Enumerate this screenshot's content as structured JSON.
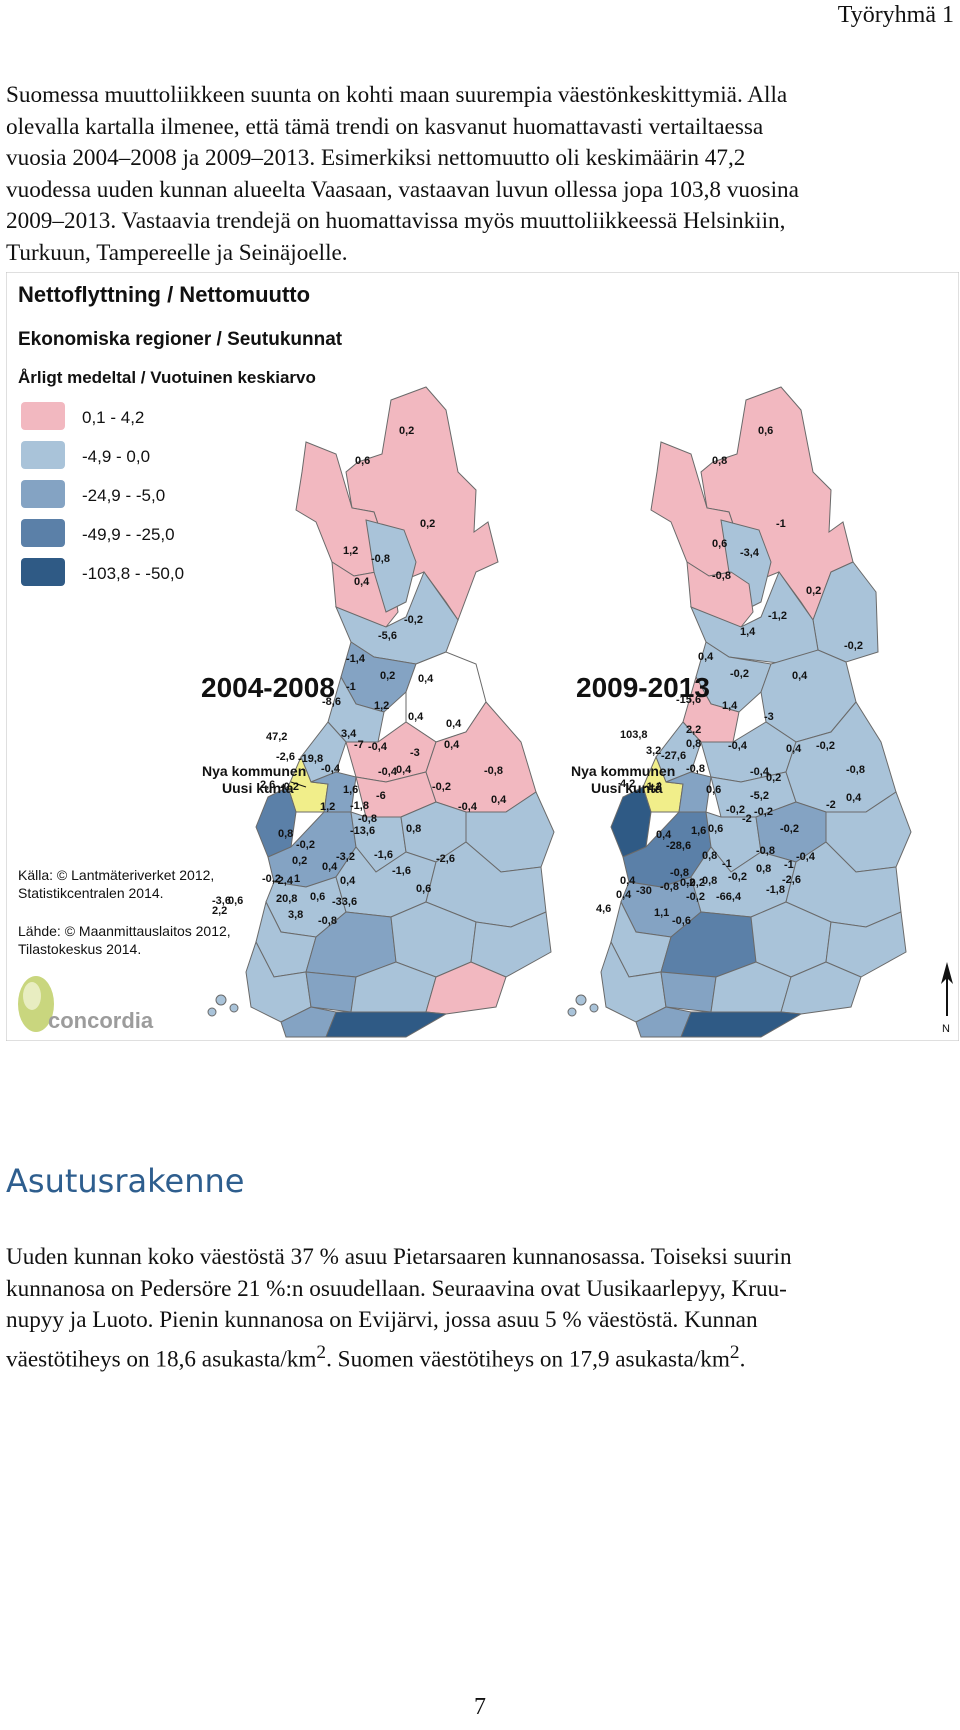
{
  "header": {
    "group_label": "Työryhmä 1"
  },
  "intro": {
    "lines": [
      "Suomessa muuttoliikkeen suunta on kohti maan suurempia väestönkeskittymiä. Alla",
      "olevalla kartalla ilmenee, että tämä trendi on kasvanut huomattavasti vertailtaessa",
      "vuosia 2004–2008 ja 2009–2013. Esimerkiksi nettomuutto oli keskimäärin 47,2",
      "vuodessa uuden kunnan alueelta Vaasaan, vastaavan luvun ollessa jopa 103,8 vuosina",
      "2009–2013. Vastaavia trendejä on huomattavissa myös muuttoliikkeessä Helsinkiin,",
      "Turkuun, Tampereelle ja Seinäjoelle."
    ]
  },
  "map": {
    "title": "Nettoflyttning / Nettomuutto",
    "subtitle": "Ekonomiska regioner / Seutukunnat",
    "subtitle2": "Årligt medeltal / Vuotuinen keskiarvo",
    "legend": [
      {
        "label": "0,1 - 4,2",
        "color": "#F2B8C0"
      },
      {
        "label": "-4,9 - 0,0",
        "color": "#A9C3D9"
      },
      {
        "label": "-24,9 - -5,0",
        "color": "#84A3C3"
      },
      {
        "label": "-49,9 - -25,0",
        "color": "#5B80A8"
      },
      {
        "label": "-103,8 - -50,0",
        "color": "#2F5A85"
      }
    ],
    "new_municipality_color": "#F1EE8A",
    "period_left": "2004-2008",
    "period_right": "2009-2013",
    "new_municipality_label_line1": "Nya kommunen",
    "new_municipality_label_line2": "Uusi kunta",
    "source1_line1": "Källa: © Lantmäteriverket 2012,",
    "source1_line2": "Statistikcentralen 2014.",
    "source2_line1": "Lähde: © Maanmittauslaitos 2012,",
    "source2_line2": "Tilastokeskus 2014.",
    "logo_text": "concordia",
    "north_label": "N",
    "left_values": [
      "0,2",
      "0,6",
      "0,2",
      "1,2",
      "-0,8",
      "0,4",
      "-0,2",
      "-5,6",
      "-1,4",
      "0,2",
      "0,4",
      "-1",
      "-8,6",
      "1,2",
      "0,4",
      "0,4",
      "3,4",
      "47,2",
      "-7",
      "-0,4",
      "-3",
      "0,4",
      "-2,6",
      "-19,8",
      "-0,4",
      "-0,4",
      "0,4",
      "-0,8",
      "2,6",
      "-0,2",
      "1,6",
      "-6",
      "-0,2",
      "1,2",
      "-1,8",
      "-0,4",
      "0,4",
      "-0,8",
      "0,8",
      "0,8",
      "-13,6",
      "-0,2",
      "-3,2",
      "-1,6",
      "-2,6",
      "0,2",
      "0,4",
      "1",
      "-1,6",
      "-0,2",
      "-2,4",
      "0,4",
      "0,6",
      "20,8",
      "0,6",
      "-33,6",
      "-3,6",
      "0,6",
      "2,2",
      "3,8",
      "-0,8"
    ],
    "right_values": [
      "0,6",
      "0,8",
      "-1",
      "0,6",
      "-3,4",
      "-0,8",
      "0,2",
      "-1,2",
      "1,4",
      "-0,2",
      "0,4",
      "-0,2",
      "0,4",
      "-15,6",
      "1,4",
      "-3",
      "103,8",
      "2,2",
      "0,8",
      "-0,4",
      "0,4",
      "-0,2",
      "3,2",
      "-27,6",
      "-0,8",
      "-0,4",
      "0,2",
      "-0,8",
      "4,2",
      "-1,2",
      "0,6",
      "-5,2",
      "-0,2",
      "-2",
      "0,4",
      "-0,2",
      "-2",
      "0,6",
      "-0,2",
      "0,4",
      "1,6",
      "-28,6",
      "0,8",
      "-0,8",
      "-0,4",
      "-1",
      "0,8",
      "-0,8",
      "-1",
      "0,8",
      "-0,2",
      "0,2",
      "-2,6",
      "0,4",
      "-30",
      "-0,2",
      "-66,4",
      "-1,8",
      "0,4",
      "-0,8",
      "-0,2",
      "4,6",
      "1,1",
      "-0,6"
    ]
  },
  "section": {
    "heading": "Asutusrakenne"
  },
  "body": {
    "line1": "Uuden kunnan koko väestöstä 37 % asuu Pietarsaaren kunnanosassa. Toiseksi suurin",
    "line2": "kunnanosa on Pedersöre 21 %:n osuudellaan. Seuraavina ovat Uusikaarlepyy, Kruu-",
    "line3": "nupyy ja Luoto. Pienin kunnanosa on Evijärvi, jossa asuu 5 % väestöstä. Kunnan",
    "line4_a": "väestötiheys on 18,6 asukasta/km",
    "line4_sup1": "2",
    "line4_b": ". Suomen väestötiheys on 17,9 asukasta/km",
    "line4_sup2": "2",
    "line4_c": "."
  },
  "footer": {
    "page_number": "7"
  }
}
